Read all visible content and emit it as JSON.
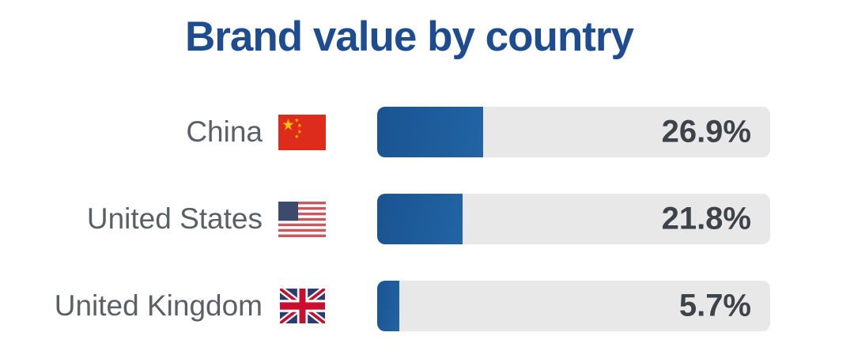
{
  "title": "Brand value by country",
  "colors": {
    "title": "#1d4d90",
    "bar_fill": "#1e5c9e",
    "bar_track": "#e8e8e8",
    "label_text": "#5b5f66",
    "value_text": "#3e4349",
    "background": "#ffffff"
  },
  "rows": [
    {
      "country": "China",
      "flag": "china-flag-icon",
      "value": 26.9,
      "value_label": "26.9%"
    },
    {
      "country": "United States",
      "flag": "us-flag-icon",
      "value": 21.8,
      "value_label": "21.8%"
    },
    {
      "country": "United Kingdom",
      "flag": "uk-flag-icon",
      "value": 5.7,
      "value_label": "5.7%"
    }
  ],
  "chart_data": {
    "type": "bar",
    "orientation": "horizontal",
    "title": "Brand value by country",
    "categories": [
      "China",
      "United States",
      "United Kingdom"
    ],
    "values": [
      26.9,
      21.8,
      5.7
    ],
    "value_labels": [
      "26.9%",
      "21.8%",
      "5.7%"
    ],
    "xlabel": "",
    "ylabel": "",
    "xlim": [
      0,
      100
    ],
    "grid": false,
    "legend": false,
    "value_label_position": "inside-track-right"
  }
}
